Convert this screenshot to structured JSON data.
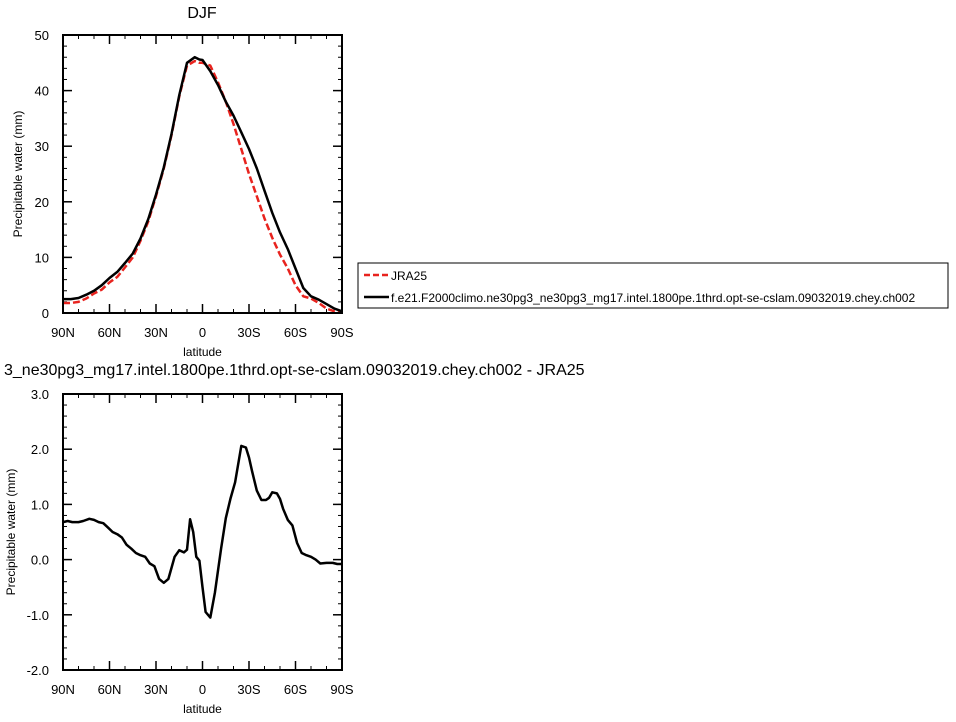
{
  "chart_data": [
    {
      "type": "line",
      "title": "DJF",
      "xlabel": "latitude",
      "ylabel": "Precipitable water (mm)",
      "xlim": [
        90,
        -90
      ],
      "ylim": [
        0,
        50
      ],
      "x_tick_values": [
        90,
        60,
        30,
        0,
        -30,
        -60,
        -90
      ],
      "x_tick_labels": [
        "90N",
        "60N",
        "30N",
        "0",
        "30S",
        "60S",
        "90S"
      ],
      "y_tick_values": [
        0,
        10,
        20,
        30,
        40,
        50
      ],
      "y_tick_labels": [
        "0",
        "10",
        "20",
        "30",
        "40",
        "50"
      ],
      "legend_position": "right",
      "series": [
        {
          "name": "JRA25",
          "color": "#e8231e",
          "dash": "dashed",
          "x": [
            90,
            85,
            80,
            75,
            70,
            65,
            60,
            55,
            50,
            45,
            40,
            35,
            30,
            25,
            20,
            15,
            10,
            5,
            2,
            0,
            -5,
            -10,
            -15,
            -20,
            -25,
            -30,
            -35,
            -40,
            -45,
            -50,
            -55,
            -60,
            -65,
            -70,
            -75,
            -80,
            -85,
            -90
          ],
          "y": [
            1.8,
            1.8,
            2.0,
            2.6,
            3.5,
            4.2,
            5.5,
            6.5,
            8.2,
            10.0,
            13.0,
            16.5,
            21.0,
            26.0,
            32.0,
            39.0,
            44.5,
            45.3,
            45.0,
            45.0,
            44.5,
            41.5,
            38.0,
            34.0,
            29.5,
            25.0,
            21.0,
            17.0,
            13.5,
            10.5,
            8.0,
            5.0,
            3.0,
            2.6,
            1.8,
            0.8,
            0.3,
            0.2
          ]
        },
        {
          "name": "f.e21.F2000climo.ne30pg3_ne30pg3_mg17.intel.1800pe.1thrd.opt-se-cslam.09032019.chey.ch002",
          "color": "#000000",
          "dash": "solid",
          "x": [
            90,
            85,
            80,
            75,
            70,
            65,
            60,
            55,
            50,
            45,
            40,
            35,
            30,
            25,
            20,
            15,
            10,
            5,
            2,
            0,
            -5,
            -10,
            -15,
            -20,
            -25,
            -30,
            -35,
            -40,
            -45,
            -50,
            -55,
            -60,
            -65,
            -70,
            -75,
            -80,
            -85,
            -90
          ],
          "y": [
            2.5,
            2.5,
            2.7,
            3.3,
            4.0,
            5.0,
            6.3,
            7.4,
            9.0,
            10.7,
            13.4,
            16.9,
            21.3,
            26.2,
            32.2,
            39.2,
            45.0,
            46.0,
            45.6,
            45.5,
            43.5,
            41.0,
            38.0,
            35.5,
            32.5,
            29.5,
            26.0,
            22.0,
            18.0,
            14.5,
            11.5,
            8.0,
            4.5,
            3.0,
            2.4,
            1.6,
            0.8,
            0.3
          ]
        }
      ]
    },
    {
      "type": "line",
      "title": "3_ne30pg3_mg17.intel.1800pe.1thrd.opt-se-cslam.09032019.chey.ch002 - JRA25",
      "xlabel": "latitude",
      "ylabel": "Precipitable water (mm)",
      "xlim": [
        90,
        -90
      ],
      "ylim": [
        -2,
        3
      ],
      "x_tick_values": [
        90,
        60,
        30,
        0,
        -30,
        -60,
        -90
      ],
      "x_tick_labels": [
        "90N",
        "60N",
        "30N",
        "0",
        "30S",
        "60S",
        "90S"
      ],
      "y_tick_values": [
        -2,
        -1,
        0,
        1,
        2,
        3
      ],
      "y_tick_labels": [
        "-2.0",
        "-1.0",
        "0.0",
        "1.0",
        "2.0",
        "3.0"
      ],
      "series": [
        {
          "color": "#000000",
          "dash": "solid",
          "x": [
            90,
            87,
            84,
            80,
            77,
            73,
            70,
            67,
            64,
            61,
            58,
            55,
            52,
            49,
            46,
            43,
            40,
            37,
            34,
            31,
            28,
            25,
            22,
            20,
            18,
            15,
            12,
            10,
            8,
            6,
            4,
            2,
            0,
            -2,
            -5,
            -8,
            -10,
            -12,
            -15,
            -18,
            -21,
            -25,
            -28,
            -30,
            -32,
            -35,
            -38,
            -41,
            -43,
            -45,
            -48,
            -50,
            -52,
            -55,
            -58,
            -61,
            -64,
            -67,
            -70,
            -73,
            -76,
            -80,
            -84,
            -87,
            -90
          ],
          "y": [
            0.68,
            0.7,
            0.68,
            0.68,
            0.7,
            0.74,
            0.72,
            0.68,
            0.66,
            0.58,
            0.5,
            0.46,
            0.4,
            0.27,
            0.2,
            0.12,
            0.08,
            0.05,
            -0.07,
            -0.12,
            -0.35,
            -0.42,
            -0.35,
            -0.15,
            0.05,
            0.17,
            0.13,
            0.18,
            0.73,
            0.5,
            0.05,
            -0.02,
            -0.5,
            -0.95,
            -1.05,
            -0.6,
            -0.2,
            0.2,
            0.75,
            1.1,
            1.4,
            2.06,
            2.03,
            1.85,
            1.6,
            1.25,
            1.08,
            1.08,
            1.12,
            1.22,
            1.2,
            1.1,
            0.92,
            0.72,
            0.62,
            0.3,
            0.12,
            0.08,
            0.05,
            0.0,
            -0.07,
            -0.06,
            -0.06,
            -0.08,
            -0.08
          ]
        }
      ]
    }
  ]
}
